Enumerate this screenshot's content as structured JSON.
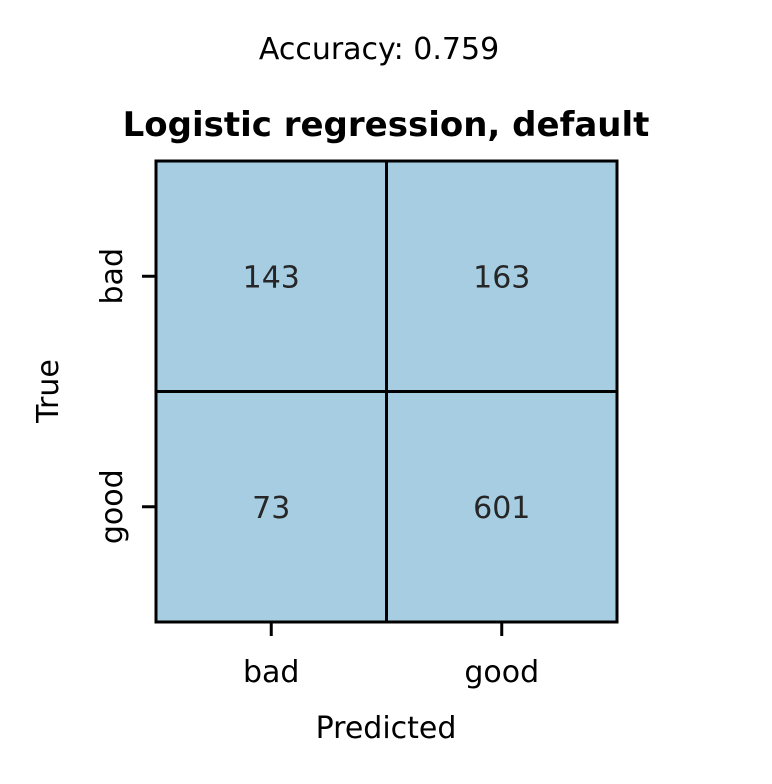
{
  "suptitle": "Accuracy: 0.759",
  "chart_data": {
    "type": "heatmap",
    "title": "Logistic regression, default",
    "xlabel": "Predicted",
    "ylabel": "True",
    "x_categories": [
      "bad",
      "good"
    ],
    "y_categories": [
      "bad",
      "good"
    ],
    "values": [
      [
        143,
        163
      ],
      [
        73,
        601
      ]
    ],
    "cell_color": "#a6cde2",
    "colorbar": false,
    "grid": false
  }
}
